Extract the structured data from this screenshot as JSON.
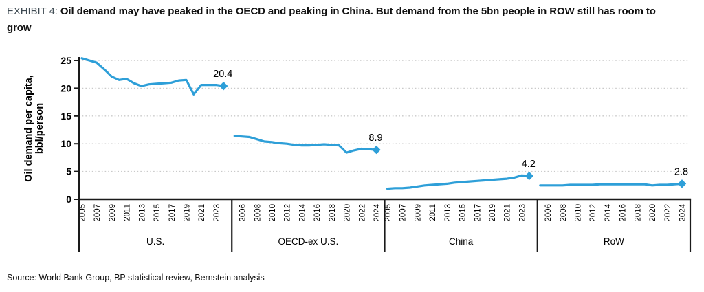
{
  "header": {
    "exhibit_label": "EXHIBIT 4:",
    "title": "Oil demand may have peaked in the OECD and peaking in China. But demand from the 5bn people in ROW still has room to grow"
  },
  "footer": {
    "source": "Source: World Bank Group, BP statistical review, Bernstein analysis"
  },
  "colors": {
    "line": "#2E9FD8",
    "marker": "#2E9FD8",
    "grid": "#C9C9C9",
    "axis": "#1A1A1A",
    "text": "#000000"
  },
  "chart_data": {
    "type": "line",
    "title": "Oil demand may have peaked in the OECD and peaking in China. But demand from the 5bn people in ROW still has room to grow",
    "ylabel_lines": [
      "Oil demand per capita,",
      "bbl/person"
    ],
    "ylabel": "Oil demand per capita, bbl/person",
    "ylim": [
      0,
      25
    ],
    "yticks": [
      0,
      5,
      10,
      15,
      20,
      25
    ],
    "grid": "dotted-horizontal",
    "legend": "none",
    "marker_style": "diamond-on-last-point",
    "years": [
      2005,
      2006,
      2007,
      2008,
      2009,
      2010,
      2011,
      2012,
      2013,
      2014,
      2015,
      2016,
      2017,
      2018,
      2019,
      2020,
      2021,
      2022,
      2023,
      2024
    ],
    "panels": [
      {
        "key": "us",
        "name": "U.S.",
        "tick_years": [
          2005,
          2007,
          2009,
          2011,
          2013,
          2015,
          2017,
          2019,
          2021,
          2023
        ],
        "values": [
          25.4,
          25.0,
          24.6,
          23.4,
          22.1,
          21.5,
          21.7,
          20.9,
          20.4,
          20.7,
          20.8,
          20.9,
          21.0,
          21.4,
          21.5,
          18.9,
          20.6,
          20.6,
          20.6,
          20.4
        ],
        "end_label": "20.4"
      },
      {
        "key": "oecd_ex_us",
        "name": "OECD-ex U.S.",
        "tick_years": [
          2006,
          2008,
          2010,
          2012,
          2014,
          2016,
          2018,
          2020,
          2022,
          2024
        ],
        "values": [
          11.4,
          11.3,
          11.2,
          10.8,
          10.4,
          10.3,
          10.1,
          10.0,
          9.8,
          9.7,
          9.7,
          9.8,
          9.9,
          9.8,
          9.7,
          8.4,
          8.8,
          9.1,
          9.0,
          8.9
        ],
        "end_label": "8.9"
      },
      {
        "key": "china",
        "name": "China",
        "tick_years": [
          2005,
          2007,
          2009,
          2011,
          2013,
          2015,
          2017,
          2019,
          2021,
          2023
        ],
        "values": [
          1.9,
          2.0,
          2.0,
          2.1,
          2.3,
          2.5,
          2.6,
          2.7,
          2.8,
          3.0,
          3.1,
          3.2,
          3.3,
          3.4,
          3.5,
          3.6,
          3.7,
          3.9,
          4.3,
          4.2
        ],
        "end_label": "4.2"
      },
      {
        "key": "row",
        "name": "RoW",
        "tick_years": [
          2006,
          2008,
          2010,
          2012,
          2014,
          2016,
          2018,
          2020,
          2022,
          2024
        ],
        "values": [
          2.5,
          2.5,
          2.5,
          2.5,
          2.6,
          2.6,
          2.6,
          2.6,
          2.7,
          2.7,
          2.7,
          2.7,
          2.7,
          2.7,
          2.7,
          2.5,
          2.6,
          2.6,
          2.7,
          2.8
        ],
        "end_label": "2.8"
      }
    ]
  }
}
